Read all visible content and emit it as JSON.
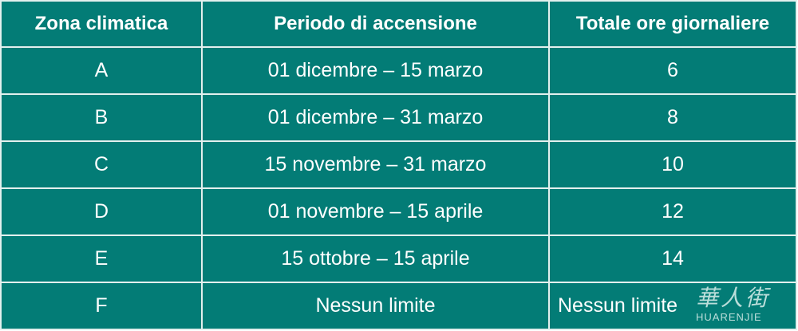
{
  "table": {
    "headers": [
      "Zona climatica",
      "Periodo di accensione",
      "Totale ore giornaliere"
    ],
    "rows": [
      [
        "A",
        "01 dicembre – 15 marzo",
        "6"
      ],
      [
        "B",
        "01 dicembre – 31 marzo",
        "8"
      ],
      [
        "C",
        "15 novembre – 31 marzo",
        "10"
      ],
      [
        "D",
        "01 novembre – 15 aprile",
        "12"
      ],
      [
        "E",
        "15 ottobre – 15 aprile",
        "14"
      ],
      [
        "F",
        "Nessun limite",
        "Nessun limite"
      ]
    ]
  },
  "watermark": {
    "chinese": "華人街",
    "latin": "HUARENJIE"
  },
  "colors": {
    "background": "#037c76",
    "text": "#ffffff",
    "grid": "#e3f0ee"
  }
}
